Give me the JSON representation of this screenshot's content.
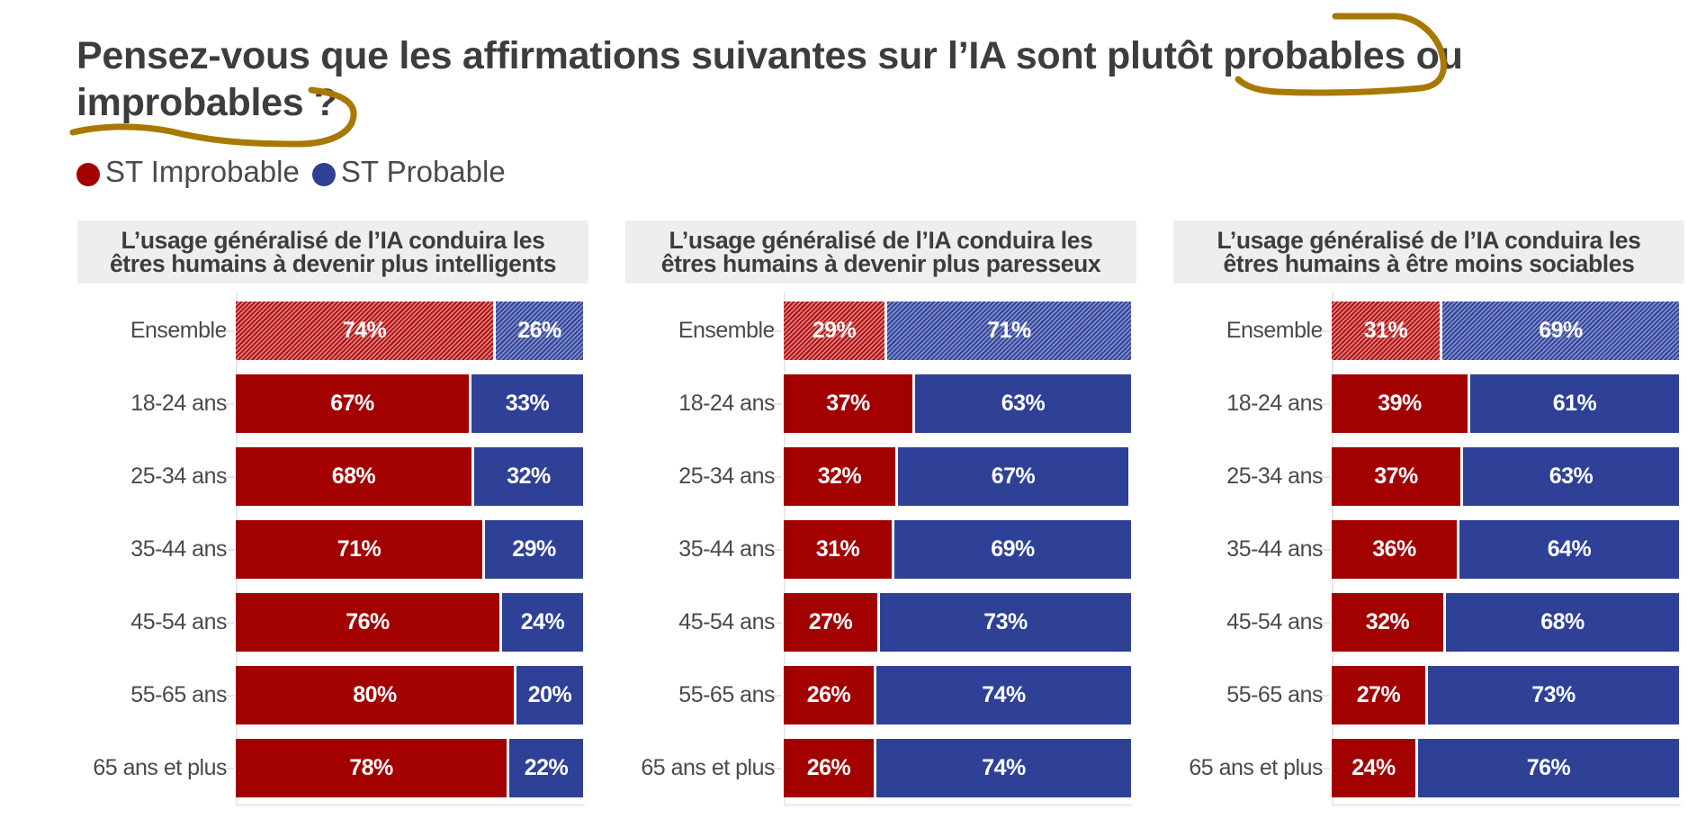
{
  "title": "Pensez-vous que les affirmations suivantes sur l’IA sont plutôt probables ou improbables ?",
  "legend": [
    {
      "label": "ST Improbable",
      "color": "#a30000"
    },
    {
      "label": "ST Probable",
      "color": "#2e4197"
    }
  ],
  "annotation_color": "#a87800",
  "chart_data": [
    {
      "type": "bar",
      "stacked": true,
      "orientation": "horizontal",
      "title": "L’usage généralisé de l’IA conduira les êtres humains à devenir plus intelligents",
      "title_lines": [
        "L’usage généralisé de l’IA conduira les",
        "êtres humains à devenir plus intelligents"
      ],
      "categories": [
        "Ensemble",
        "18-24 ans",
        "25-34 ans",
        "35-44 ans",
        "45-54 ans",
        "55-65 ans",
        "65 ans et plus"
      ],
      "series": [
        {
          "name": "ST Improbable",
          "color": "#a30000",
          "values": [
            74,
            67,
            68,
            71,
            76,
            80,
            78
          ]
        },
        {
          "name": "ST Probable",
          "color": "#2e4197",
          "values": [
            26,
            33,
            32,
            29,
            24,
            20,
            22
          ]
        }
      ],
      "hatched_categories": [
        "Ensemble"
      ],
      "unit": "%",
      "xlim": [
        0,
        100
      ]
    },
    {
      "type": "bar",
      "stacked": true,
      "orientation": "horizontal",
      "title": "L’usage généralisé de l’IA conduira les êtres humains à devenir plus paresseux",
      "title_lines": [
        "L’usage généralisé de l’IA conduira les",
        "êtres humains à devenir plus paresseux"
      ],
      "categories": [
        "Ensemble",
        "18-24 ans",
        "25-34 ans",
        "35-44 ans",
        "45-54 ans",
        "55-65 ans",
        "65 ans et plus"
      ],
      "series": [
        {
          "name": "ST Improbable",
          "color": "#a30000",
          "values": [
            29,
            37,
            32,
            31,
            27,
            26,
            26
          ]
        },
        {
          "name": "ST Probable",
          "color": "#2e4197",
          "values": [
            71,
            63,
            67,
            69,
            73,
            74,
            74
          ]
        }
      ],
      "hatched_categories": [
        "Ensemble"
      ],
      "unit": "%",
      "xlim": [
        0,
        100
      ]
    },
    {
      "type": "bar",
      "stacked": true,
      "orientation": "horizontal",
      "title": "L’usage généralisé de l’IA conduira les êtres humains à être moins sociables",
      "title_lines": [
        "L’usage généralisé de l’IA conduira les",
        "êtres humains à être moins sociables"
      ],
      "categories": [
        "Ensemble",
        "18-24 ans",
        "25-34 ans",
        "35-44 ans",
        "45-54 ans",
        "55-65 ans",
        "65 ans et plus"
      ],
      "series": [
        {
          "name": "ST Improbable",
          "color": "#a30000",
          "values": [
            31,
            39,
            37,
            36,
            32,
            27,
            24
          ]
        },
        {
          "name": "ST Probable",
          "color": "#2e4197",
          "values": [
            69,
            61,
            63,
            64,
            68,
            73,
            76
          ]
        }
      ],
      "hatched_categories": [
        "Ensemble"
      ],
      "unit": "%",
      "xlim": [
        0,
        100
      ]
    }
  ]
}
